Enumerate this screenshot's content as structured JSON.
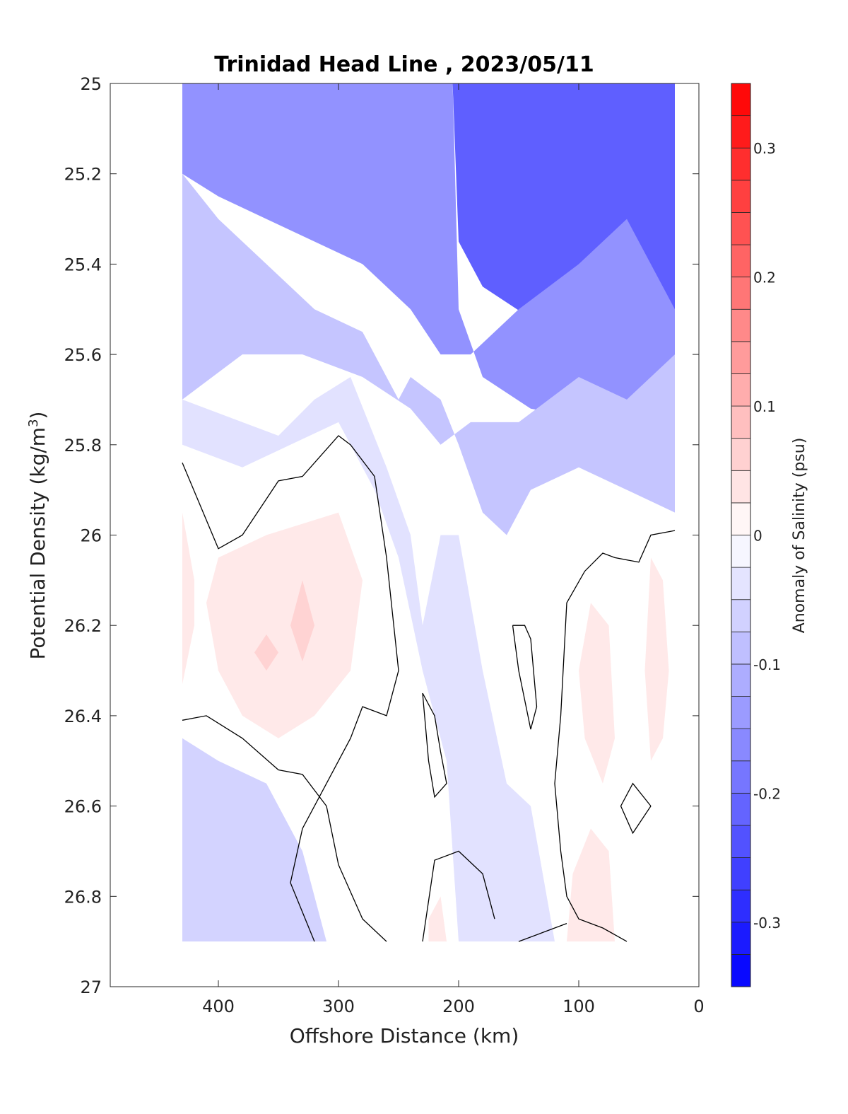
{
  "chart_data": {
    "type": "heatmap",
    "title": "Trinidad Head Line , 2023/05/11",
    "xlabel": "Offshore Distance (km)",
    "ylabel_main": "Potential Density (kg/m",
    "ylabel_sup": "3",
    "ylabel_close": ")",
    "xlim": [
      490,
      0
    ],
    "ylim": [
      25,
      27
    ],
    "x_reversed": true,
    "y_reversed": true,
    "xticks": [
      400,
      300,
      200,
      100,
      0
    ],
    "xtick_labels": [
      "400",
      "300",
      "200",
      "100",
      "0"
    ],
    "yticks": [
      25,
      25.2,
      25.4,
      25.6,
      25.8,
      26,
      26.2,
      26.4,
      26.6,
      26.8,
      27
    ],
    "ytick_labels": [
      "25",
      "25.2",
      "25.4",
      "25.6",
      "25.8",
      "26",
      "26.2",
      "26.4",
      "26.6",
      "26.8",
      "27"
    ],
    "colorbar": {
      "label": "Anomaly of Salinity (psu)",
      "range": [
        -0.35,
        0.35
      ],
      "levels": 28,
      "ticks": [
        0.3,
        0.2,
        0.1,
        0,
        -0.1,
        -0.2,
        -0.3
      ],
      "tick_labels": [
        "0.3",
        "0.2",
        "0.1",
        "0",
        "-0.1",
        "-0.2",
        "-0.3"
      ],
      "min_color": "#0000ff",
      "mid_color": "#ffffff",
      "max_color": "#ff0000"
    },
    "data_extent": {
      "x_range": [
        430,
        20
      ],
      "y_range": [
        25,
        26.9
      ]
    },
    "filled_regions": [
      {
        "value": -0.3,
        "poly": [
          [
            200,
            25
          ],
          [
            90,
            25
          ],
          [
            65,
            25.2
          ],
          [
            50,
            25.2
          ],
          [
            20,
            25.5
          ],
          [
            20,
            25.55
          ],
          [
            60,
            25.42
          ],
          [
            100,
            25.32
          ],
          [
            140,
            25.26
          ],
          [
            180,
            25.22
          ]
        ]
      },
      {
        "value": -0.22,
        "poly": [
          [
            205,
            25
          ],
          [
            20,
            25
          ],
          [
            20,
            25.72
          ],
          [
            60,
            25.62
          ],
          [
            100,
            25.56
          ],
          [
            140,
            25.52
          ],
          [
            180,
            25.45
          ],
          [
            200,
            25.35
          ]
        ]
      },
      {
        "value": -0.15,
        "poly": [
          [
            430,
            25
          ],
          [
            205,
            25
          ],
          [
            200,
            25.5
          ],
          [
            180,
            25.65
          ],
          [
            140,
            25.72
          ],
          [
            100,
            25.74
          ],
          [
            60,
            25.8
          ],
          [
            20,
            25.85
          ],
          [
            20,
            25.5
          ],
          [
            60,
            25.3
          ],
          [
            100,
            25.4
          ],
          [
            150,
            25.5
          ],
          [
            190,
            25.6
          ],
          [
            215,
            25.6
          ],
          [
            240,
            25.5
          ],
          [
            280,
            25.4
          ],
          [
            320,
            25.35
          ],
          [
            360,
            25.3
          ],
          [
            400,
            25.25
          ],
          [
            430,
            25.2
          ]
        ]
      },
      {
        "value": -0.08,
        "poly": [
          [
            430,
            25.2
          ],
          [
            400,
            25.3
          ],
          [
            360,
            25.4
          ],
          [
            320,
            25.5
          ],
          [
            280,
            25.55
          ],
          [
            250,
            25.7
          ],
          [
            240,
            25.65
          ],
          [
            215,
            25.7
          ],
          [
            200,
            25.8
          ],
          [
            180,
            25.95
          ],
          [
            160,
            26.0
          ],
          [
            140,
            25.9
          ],
          [
            100,
            25.85
          ],
          [
            60,
            25.9
          ],
          [
            20,
            25.95
          ],
          [
            20,
            25.6
          ],
          [
            60,
            25.7
          ],
          [
            100,
            25.65
          ],
          [
            150,
            25.75
          ],
          [
            190,
            25.75
          ],
          [
            215,
            25.8
          ],
          [
            240,
            25.72
          ],
          [
            280,
            25.65
          ],
          [
            330,
            25.6
          ],
          [
            380,
            25.6
          ],
          [
            430,
            25.7
          ]
        ]
      },
      {
        "value": -0.04,
        "poly": [
          [
            430,
            25.7
          ],
          [
            380,
            25.75
          ],
          [
            350,
            25.78
          ],
          [
            320,
            25.7
          ],
          [
            290,
            25.65
          ],
          [
            260,
            25.85
          ],
          [
            240,
            26.0
          ],
          [
            230,
            26.2
          ],
          [
            215,
            26.0
          ],
          [
            200,
            26.0
          ],
          [
            180,
            26.3
          ],
          [
            160,
            26.55
          ],
          [
            140,
            26.6
          ],
          [
            120,
            26.9
          ],
          [
            160,
            26.9
          ],
          [
            200,
            26.9
          ],
          [
            210,
            26.5
          ],
          [
            230,
            26.3
          ],
          [
            250,
            26.05
          ],
          [
            270,
            25.9
          ],
          [
            300,
            25.75
          ],
          [
            340,
            25.8
          ],
          [
            380,
            25.85
          ],
          [
            430,
            25.8
          ]
        ]
      },
      {
        "value": -0.06,
        "poly": [
          [
            430,
            26.45
          ],
          [
            400,
            26.5
          ],
          [
            360,
            26.55
          ],
          [
            330,
            26.7
          ],
          [
            310,
            26.9
          ],
          [
            430,
            26.9
          ]
        ]
      },
      {
        "value": 0.03,
        "poly": [
          [
            400,
            26.05
          ],
          [
            360,
            26.0
          ],
          [
            300,
            25.95
          ],
          [
            280,
            26.1
          ],
          [
            290,
            26.3
          ],
          [
            320,
            26.4
          ],
          [
            350,
            26.45
          ],
          [
            380,
            26.4
          ],
          [
            400,
            26.3
          ],
          [
            410,
            26.15
          ]
        ]
      },
      {
        "value": 0.06,
        "poly": [
          [
            370,
            26.26
          ],
          [
            360,
            26.3
          ],
          [
            350,
            26.26
          ],
          [
            360,
            26.22
          ]
        ]
      },
      {
        "value": 0.06,
        "poly": [
          [
            330,
            26.1
          ],
          [
            320,
            26.2
          ],
          [
            330,
            26.28
          ],
          [
            340,
            26.2
          ]
        ]
      },
      {
        "value": 0.03,
        "poly": [
          [
            430,
            25.95
          ],
          [
            420,
            26.1
          ],
          [
            420,
            26.2
          ],
          [
            430,
            26.33
          ]
        ]
      },
      {
        "value": 0.03,
        "poly": [
          [
            90,
            26.15
          ],
          [
            75,
            26.2
          ],
          [
            70,
            26.45
          ],
          [
            80,
            26.55
          ],
          [
            95,
            26.45
          ],
          [
            100,
            26.3
          ]
        ]
      },
      {
        "value": 0.03,
        "poly": [
          [
            90,
            26.65
          ],
          [
            75,
            26.7
          ],
          [
            70,
            26.9
          ],
          [
            110,
            26.9
          ],
          [
            105,
            26.75
          ]
        ]
      },
      {
        "value": 0.03,
        "poly": [
          [
            40,
            26.05
          ],
          [
            30,
            26.1
          ],
          [
            25,
            26.3
          ],
          [
            30,
            26.45
          ],
          [
            40,
            26.5
          ],
          [
            45,
            26.3
          ]
        ]
      },
      {
        "value": 0.03,
        "poly": [
          [
            225,
            26.85
          ],
          [
            215,
            26.8
          ],
          [
            210,
            26.9
          ],
          [
            225,
            26.9
          ]
        ]
      }
    ],
    "contour_zero": [
      {
        "points": [
          [
            430,
            25.84
          ],
          [
            400,
            26.03
          ],
          [
            380,
            26.0
          ],
          [
            350,
            25.88
          ],
          [
            330,
            25.87
          ],
          [
            300,
            25.78
          ],
          [
            290,
            25.8
          ],
          [
            270,
            25.87
          ],
          [
            260,
            26.05
          ],
          [
            250,
            26.3
          ],
          [
            260,
            26.4
          ],
          [
            280,
            26.38
          ],
          [
            290,
            26.45
          ],
          [
            310,
            26.55
          ],
          [
            330,
            26.65
          ],
          [
            340,
            26.77
          ],
          [
            320,
            26.9
          ]
        ]
      },
      {
        "points": [
          [
            430,
            26.41
          ],
          [
            410,
            26.4
          ],
          [
            380,
            26.45
          ],
          [
            350,
            26.52
          ],
          [
            330,
            26.53
          ],
          [
            310,
            26.6
          ],
          [
            300,
            26.73
          ],
          [
            280,
            26.85
          ],
          [
            260,
            26.9
          ]
        ]
      },
      {
        "points": [
          [
            230,
            26.35
          ],
          [
            220,
            26.4
          ],
          [
            215,
            26.48
          ],
          [
            210,
            26.55
          ],
          [
            220,
            26.58
          ],
          [
            225,
            26.5
          ],
          [
            230,
            26.35
          ]
        ]
      },
      {
        "points": [
          [
            155,
            26.2
          ],
          [
            150,
            26.3
          ],
          [
            140,
            26.43
          ],
          [
            135,
            26.38
          ],
          [
            140,
            26.23
          ],
          [
            145,
            26.2
          ],
          [
            155,
            26.2
          ]
        ]
      },
      {
        "points": [
          [
            170,
            26.85
          ],
          [
            180,
            26.75
          ],
          [
            200,
            26.7
          ],
          [
            220,
            26.72
          ],
          [
            230,
            26.9
          ]
        ]
      },
      {
        "points": [
          [
            20,
            25.99
          ],
          [
            40,
            26.0
          ],
          [
            50,
            26.06
          ],
          [
            70,
            26.05
          ],
          [
            80,
            26.04
          ],
          [
            95,
            26.08
          ],
          [
            110,
            26.15
          ],
          [
            115,
            26.4
          ],
          [
            120,
            26.55
          ],
          [
            115,
            26.7
          ],
          [
            110,
            26.8
          ],
          [
            100,
            26.85
          ],
          [
            80,
            26.87
          ],
          [
            60,
            26.9
          ]
        ]
      },
      {
        "points": [
          [
            40,
            26.6
          ],
          [
            55,
            26.55
          ],
          [
            65,
            26.6
          ],
          [
            55,
            26.66
          ],
          [
            40,
            26.6
          ]
        ]
      },
      {
        "points": [
          [
            150,
            26.9
          ],
          [
            130,
            26.88
          ],
          [
            110,
            26.86
          ]
        ]
      }
    ]
  }
}
